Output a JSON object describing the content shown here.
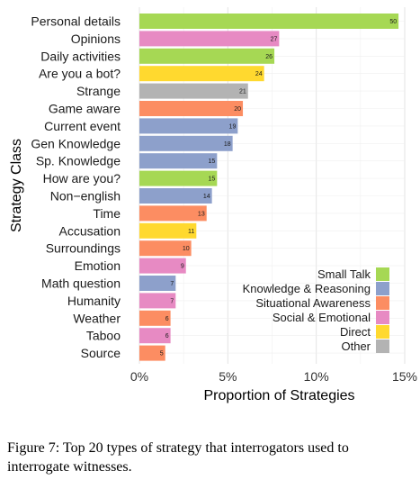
{
  "chart_data": {
    "type": "bar",
    "orientation": "horizontal",
    "title": "",
    "xlabel": "Proportion of Strategies",
    "ylabel": "Strategy Class",
    "xlim": [
      0,
      0.15
    ],
    "x_ticks": [
      "0%",
      "5%",
      "10%",
      "15%"
    ],
    "x_tick_values": [
      0,
      0.05,
      0.1,
      0.15
    ],
    "grid": true,
    "legend_position": "bottom-right",
    "legend": [
      {
        "name": "Small Talk",
        "color": "#a6d854"
      },
      {
        "name": "Knowledge & Reasoning",
        "color": "#8da0cb"
      },
      {
        "name": "Situational Awareness",
        "color": "#fc8d62"
      },
      {
        "name": "Social & Emotional",
        "color": "#e78ac3"
      },
      {
        "name": "Direct",
        "color": "#ffd92f"
      },
      {
        "name": "Other",
        "color": "#b3b3b3"
      }
    ],
    "bars": [
      {
        "category": "Personal details",
        "count": 50,
        "proportion": 0.1465,
        "group": "Small Talk"
      },
      {
        "category": "Opinions",
        "count": 27,
        "proportion": 0.079,
        "group": "Social & Emotional"
      },
      {
        "category": "Daily activities",
        "count": 26,
        "proportion": 0.0763,
        "group": "Small Talk"
      },
      {
        "category": "Are you a bot?",
        "count": 24,
        "proportion": 0.0705,
        "group": "Direct"
      },
      {
        "category": "Strange",
        "count": 21,
        "proportion": 0.0614,
        "group": "Other"
      },
      {
        "category": "Game aware",
        "count": 20,
        "proportion": 0.0585,
        "group": "Situational Awareness"
      },
      {
        "category": "Current event",
        "count": 19,
        "proportion": 0.0556,
        "group": "Knowledge & Reasoning"
      },
      {
        "category": "Gen Knowledge",
        "count": 18,
        "proportion": 0.0527,
        "group": "Knowledge & Reasoning"
      },
      {
        "category": "Sp. Knowledge",
        "count": 15,
        "proportion": 0.0439,
        "group": "Knowledge & Reasoning"
      },
      {
        "category": "How are you?",
        "count": 15,
        "proportion": 0.0439,
        "group": "Small Talk"
      },
      {
        "category": "Non−english",
        "count": 14,
        "proportion": 0.041,
        "group": "Knowledge & Reasoning"
      },
      {
        "category": "Time",
        "count": 13,
        "proportion": 0.038,
        "group": "Situational Awareness"
      },
      {
        "category": "Accusation",
        "count": 11,
        "proportion": 0.0322,
        "group": "Direct"
      },
      {
        "category": "Surroundings",
        "count": 10,
        "proportion": 0.0293,
        "group": "Situational Awareness"
      },
      {
        "category": "Emotion",
        "count": 9,
        "proportion": 0.0263,
        "group": "Social & Emotional"
      },
      {
        "category": "Math question",
        "count": 7,
        "proportion": 0.0205,
        "group": "Knowledge & Reasoning"
      },
      {
        "category": "Humanity",
        "count": 7,
        "proportion": 0.0205,
        "group": "Social & Emotional"
      },
      {
        "category": "Weather",
        "count": 6,
        "proportion": 0.0176,
        "group": "Situational Awareness"
      },
      {
        "category": "Taboo",
        "count": 6,
        "proportion": 0.0176,
        "group": "Social & Emotional"
      },
      {
        "category": "Source",
        "count": 5,
        "proportion": 0.0146,
        "group": "Situational Awareness"
      }
    ]
  },
  "caption": "Figure 7: Top 20 types of strategy that interrogators used to interrogate witnesses."
}
